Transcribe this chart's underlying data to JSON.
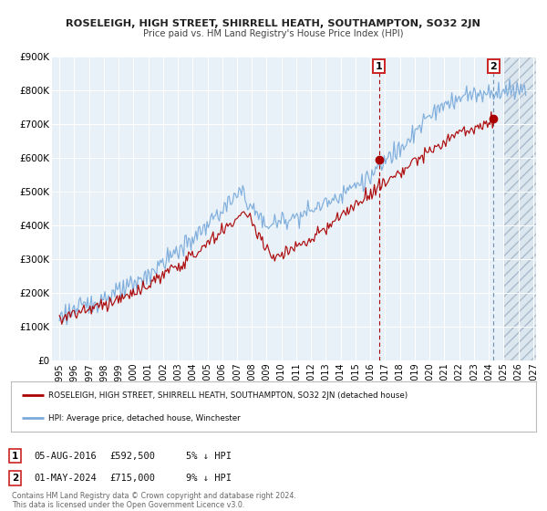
{
  "title": "ROSELEIGH, HIGH STREET, SHIRRELL HEATH, SOUTHAMPTON, SO32 2JN",
  "subtitle": "Price paid vs. HM Land Registry's House Price Index (HPI)",
  "ylim": [
    0,
    900000
  ],
  "xlim_start": 1994.5,
  "xlim_end": 2027.2,
  "yticks": [
    0,
    100000,
    200000,
    300000,
    400000,
    500000,
    600000,
    700000,
    800000,
    900000
  ],
  "ytick_labels": [
    "£0",
    "£100K",
    "£200K",
    "£300K",
    "£400K",
    "£500K",
    "£600K",
    "£700K",
    "£800K",
    "£900K"
  ],
  "xtick_years": [
    1995,
    1996,
    1997,
    1998,
    1999,
    2000,
    2001,
    2002,
    2003,
    2004,
    2005,
    2006,
    2007,
    2008,
    2009,
    2010,
    2011,
    2012,
    2013,
    2014,
    2015,
    2016,
    2017,
    2018,
    2019,
    2020,
    2021,
    2022,
    2023,
    2024,
    2025,
    2026,
    2027
  ],
  "red_color": "#aa0000",
  "blue_color": "#7aabdb",
  "point1_x": 2016.58,
  "point1_y": 592500,
  "point2_x": 2024.33,
  "point2_y": 715000,
  "legend_label_red": "ROSELEIGH, HIGH STREET, SHIRRELL HEATH, SOUTHAMPTON, SO32 2JN (detached house)",
  "legend_label_blue": "HPI: Average price, detached house, Winchester",
  "point1_date": "05-AUG-2016",
  "point1_price": "£592,500",
  "point1_hpi": "5% ↓ HPI",
  "point2_date": "01-MAY-2024",
  "point2_price": "£715,000",
  "point2_hpi": "9% ↓ HPI",
  "footer_text": "Contains HM Land Registry data © Crown copyright and database right 2024.\nThis data is licensed under the Open Government Licence v3.0.",
  "background_color": "#ffffff",
  "plot_bg_color": "#e8f0f8",
  "grid_color": "#ffffff"
}
